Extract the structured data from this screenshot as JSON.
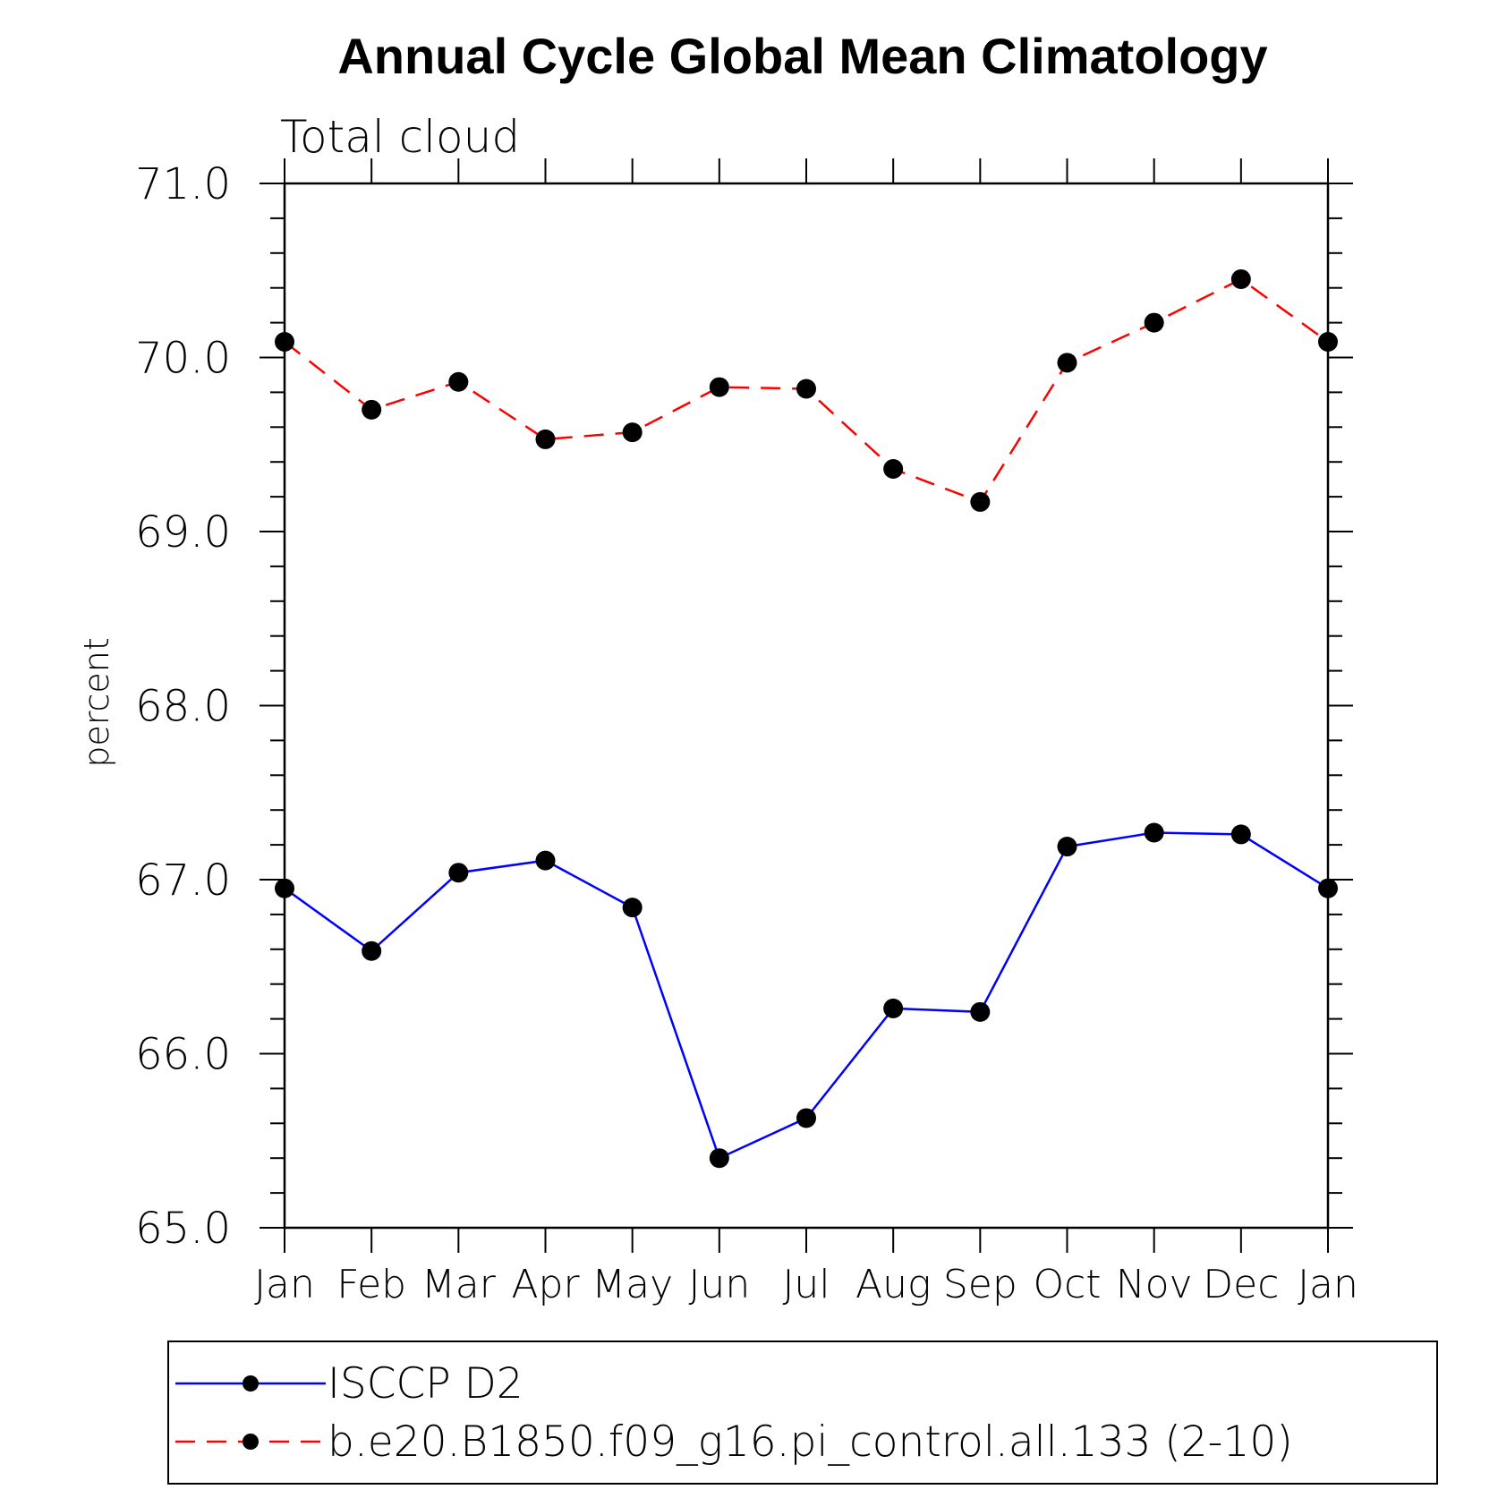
{
  "chart_data": {
    "type": "line",
    "title": "Annual Cycle Global Mean Climatology",
    "subtitle": "Total cloud",
    "xlabel": "",
    "ylabel": "percent",
    "categories": [
      "Jan",
      "Feb",
      "Mar",
      "Apr",
      "May",
      "Jun",
      "Jul",
      "Aug",
      "Sep",
      "Oct",
      "Nov",
      "Dec",
      "Jan"
    ],
    "ylim": [
      65.0,
      71.0
    ],
    "yticks": [
      "65.0",
      "66.0",
      "67.0",
      "68.0",
      "69.0",
      "70.0",
      "71.0"
    ],
    "grid": false,
    "legend_position": "bottom",
    "series": [
      {
        "name": "ISCCP D2",
        "color": "#0000ff",
        "line_style": "solid",
        "marker": "filled-circle",
        "values": [
          66.95,
          66.59,
          67.04,
          67.11,
          66.84,
          65.4,
          65.63,
          66.26,
          66.24,
          67.19,
          67.27,
          67.26,
          66.95
        ]
      },
      {
        "name": "b.e20.B1850.f09_g16.pi_control.all.133 (2-10)",
        "color": "#ff0000",
        "line_style": "dashed",
        "marker": "filled-circle",
        "values": [
          70.09,
          69.7,
          69.86,
          69.53,
          69.57,
          69.83,
          69.82,
          69.36,
          69.17,
          69.97,
          70.2,
          70.45,
          70.09
        ]
      }
    ]
  }
}
